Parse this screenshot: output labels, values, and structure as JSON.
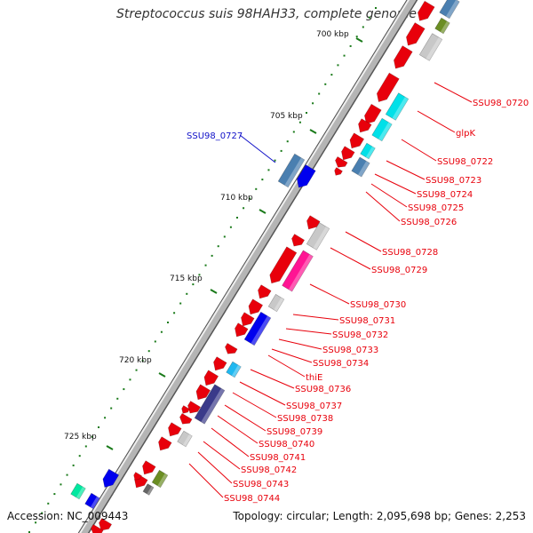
{
  "title": "Streptococcus suis 98HAH33, complete genome",
  "accession": "Accession: NC_009443",
  "topology": "Topology: circular; Length: 2,095,698 bp; Genes: 2,253",
  "kbp_labels": [
    "700 kbp",
    "705 kbp",
    "710 kbp",
    "715 kbp",
    "720 kbp",
    "725 kbp"
  ],
  "gene_labels": [
    {
      "text": "SSU98_0720",
      "color": "#e8000b"
    },
    {
      "text": "glpK",
      "color": "#e8000b"
    },
    {
      "text": "SSU98_0722",
      "color": "#e8000b"
    },
    {
      "text": "SSU98_0723",
      "color": "#e8000b"
    },
    {
      "text": "SSU98_0724",
      "color": "#e8000b"
    },
    {
      "text": "SSU98_0725",
      "color": "#e8000b"
    },
    {
      "text": "SSU98_0726",
      "color": "#e8000b"
    },
    {
      "text": "SSU98_0727",
      "color": "#1010c8"
    },
    {
      "text": "SSU98_0728",
      "color": "#e8000b"
    },
    {
      "text": "SSU98_0729",
      "color": "#e8000b"
    },
    {
      "text": "SSU98_0730",
      "color": "#e8000b"
    },
    {
      "text": "SSU98_0731",
      "color": "#e8000b"
    },
    {
      "text": "SSU98_0732",
      "color": "#e8000b"
    },
    {
      "text": "SSU98_0733",
      "color": "#e8000b"
    },
    {
      "text": "SSU98_0734",
      "color": "#e8000b"
    },
    {
      "text": "thiE",
      "color": "#e8000b"
    },
    {
      "text": "SSU98_0736",
      "color": "#e8000b"
    },
    {
      "text": "SSU98_0737",
      "color": "#e8000b"
    },
    {
      "text": "SSU98_0738",
      "color": "#e8000b"
    },
    {
      "text": "SSU98_0739",
      "color": "#e8000b"
    },
    {
      "text": "SSU98_0740",
      "color": "#e8000b"
    },
    {
      "text": "SSU98_0741",
      "color": "#e8000b"
    },
    {
      "text": "SSU98_0742",
      "color": "#e8000b"
    },
    {
      "text": "SSU98_0743",
      "color": "#e8000b"
    },
    {
      "text": "SSU98_0744",
      "color": "#e8000b"
    }
  ],
  "colors": {
    "cds": "#e8000b",
    "backbone": "#b5b5b5",
    "tick": "#1a7a1a",
    "label_blue": "#1010c8",
    "cyan": "#00e0e8",
    "steel": "#4a7fb0",
    "magenta": "#ff1493",
    "navy": "#3a3a8a",
    "blue": "#0000ee",
    "olive": "#6b8e23",
    "gray": "#c8c8c8",
    "sky": "#20b8f0",
    "mint": "#00e8a0"
  }
}
